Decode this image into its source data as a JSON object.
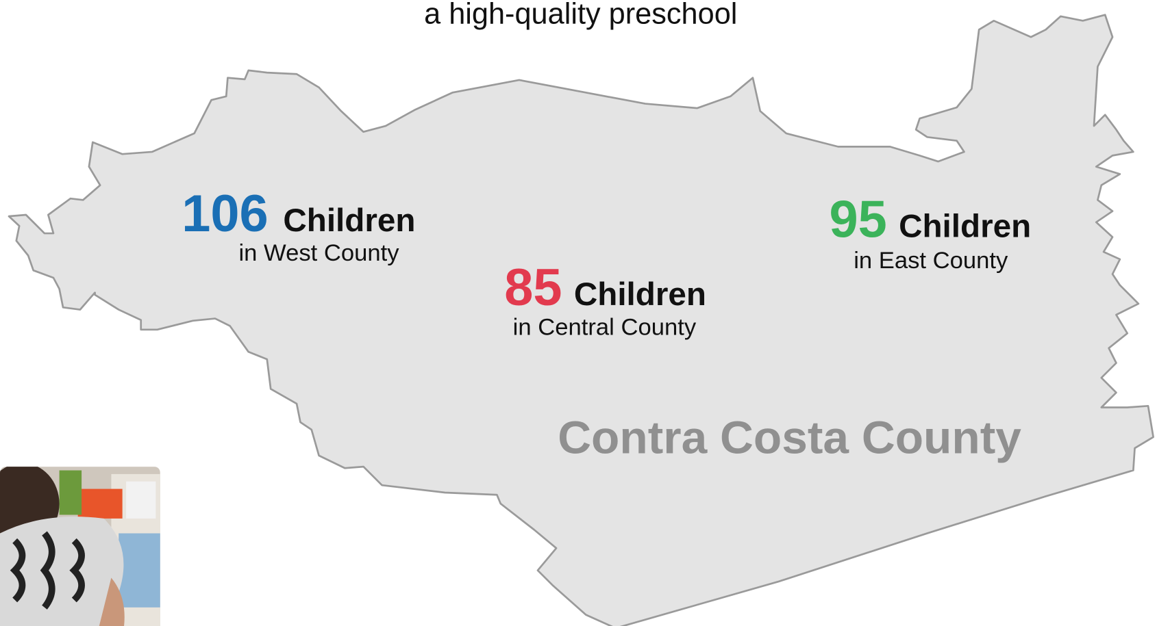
{
  "header": {
    "title": "a high-quality preschool"
  },
  "regions": [
    {
      "count": "106",
      "unit": "Children",
      "label": "in West County",
      "color": "#1a6fb5"
    },
    {
      "count": "85",
      "unit": "Children",
      "label": "in Central County",
      "color": "#e23a4e"
    },
    {
      "count": "95",
      "unit": "Children",
      "label": "in East County",
      "color": "#3bb35a"
    }
  ],
  "map_label": "Contra Costa County"
}
